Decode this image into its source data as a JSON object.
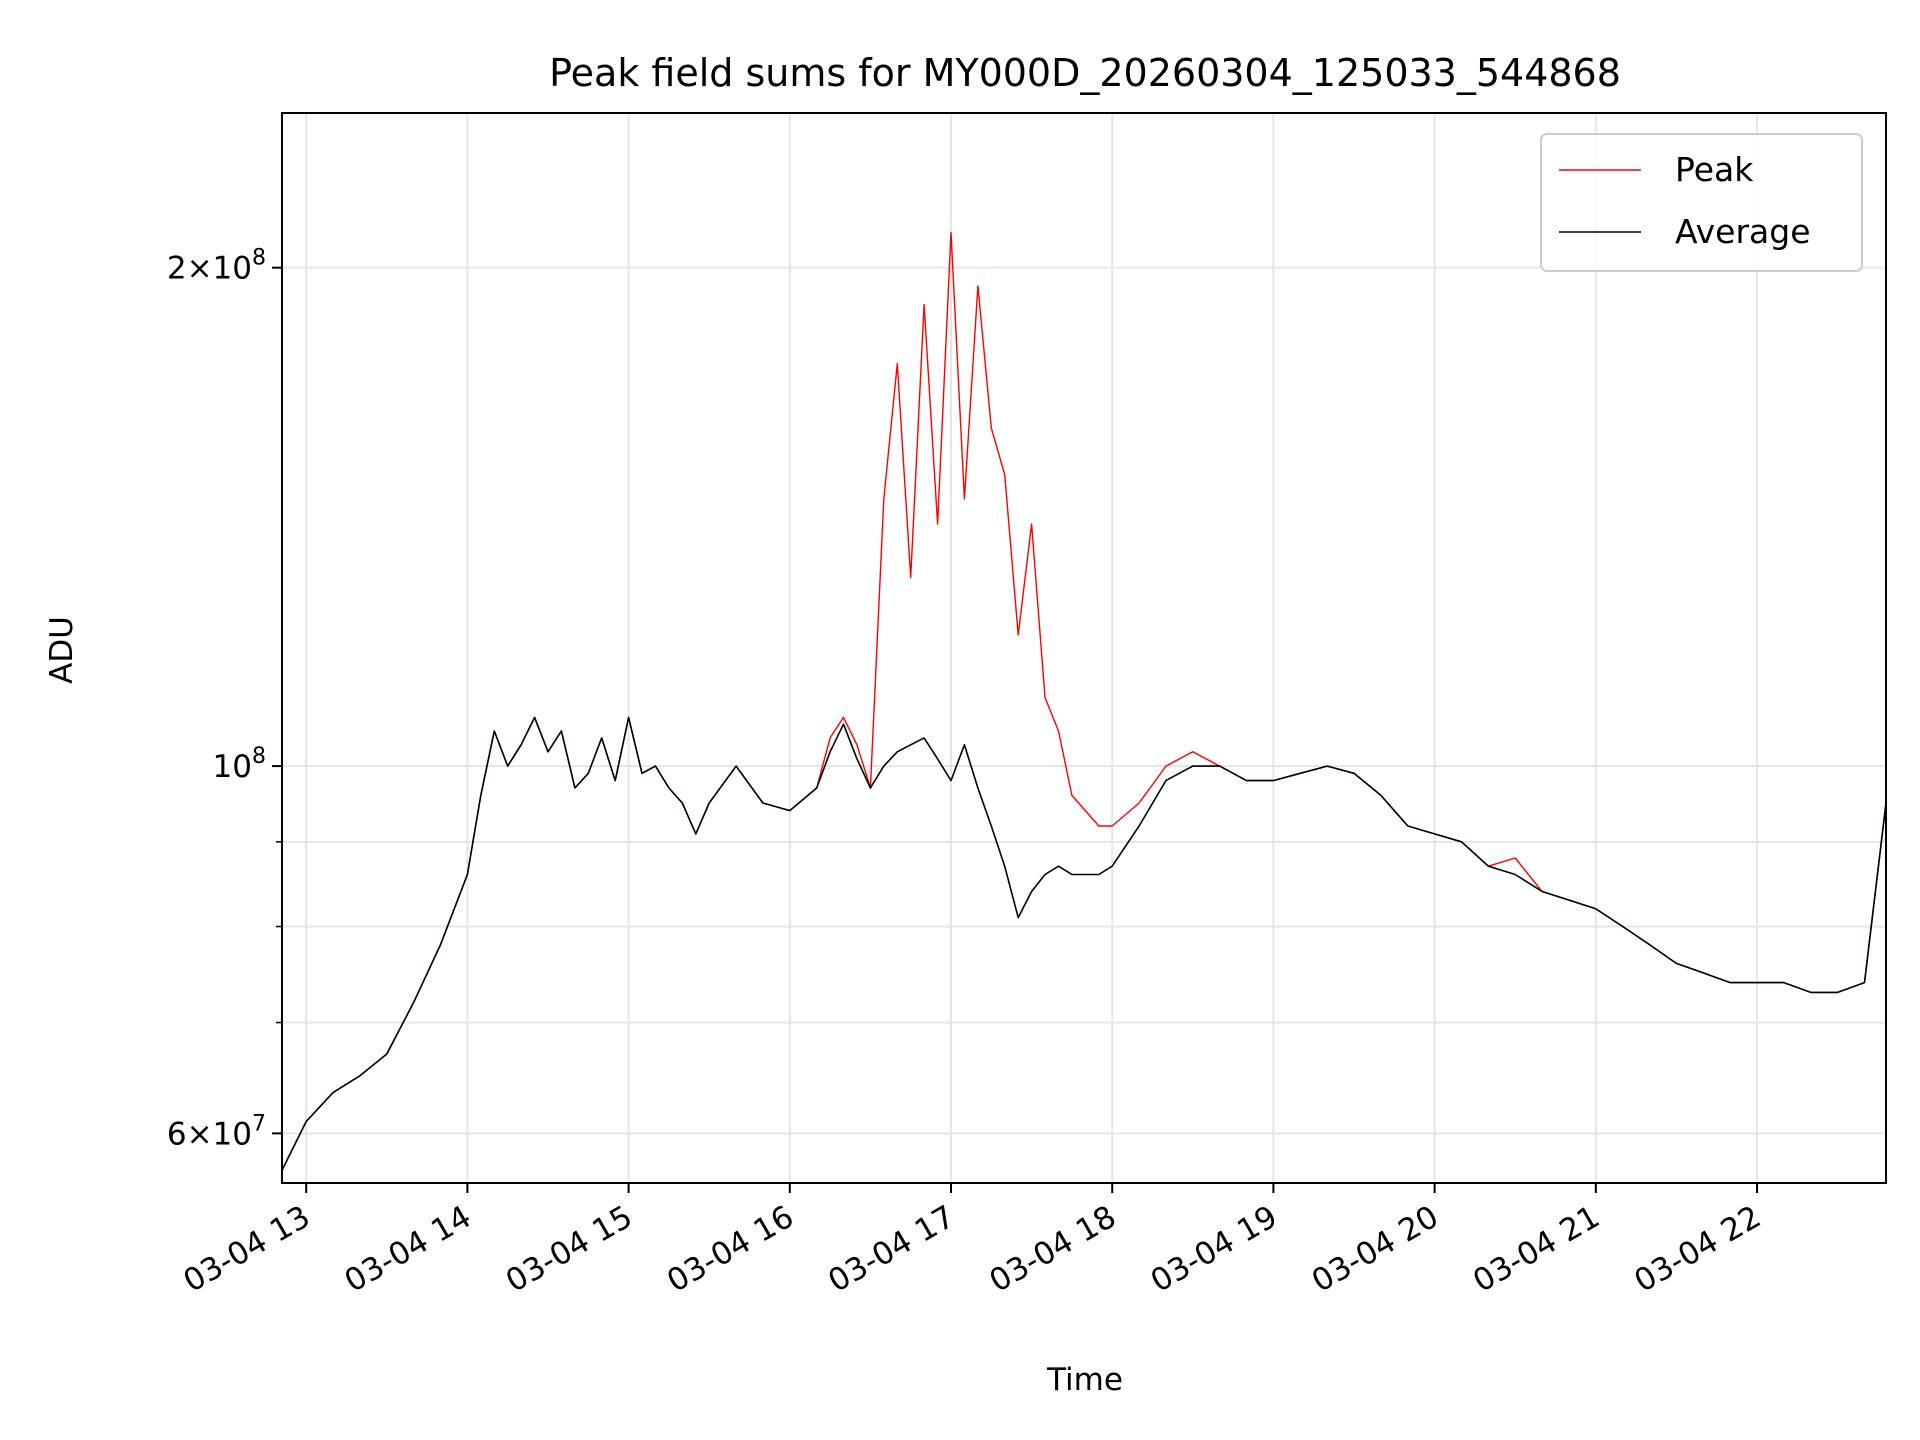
{
  "chart_data": {
    "type": "line",
    "title": "Peak field sums for MY000D_20260304_125033_544868",
    "xlabel": "Time",
    "ylabel": "ADU",
    "yscale": "log",
    "xlim": [
      "2026-03-04 12:51",
      "2026-03-04 22:48"
    ],
    "ylim": [
      56000000,
      248000000
    ],
    "grid": true,
    "legend_position": "top-right",
    "x_ticks": [
      {
        "value": "2026-03-04 13:00",
        "label": "03-04 13"
      },
      {
        "value": "2026-03-04 14:00",
        "label": "03-04 14"
      },
      {
        "value": "2026-03-04 15:00",
        "label": "03-04 15"
      },
      {
        "value": "2026-03-04 16:00",
        "label": "03-04 16"
      },
      {
        "value": "2026-03-04 17:00",
        "label": "03-04 17"
      },
      {
        "value": "2026-03-04 18:00",
        "label": "03-04 18"
      },
      {
        "value": "2026-03-04 19:00",
        "label": "03-04 19"
      },
      {
        "value": "2026-03-04 20:00",
        "label": "03-04 20"
      },
      {
        "value": "2026-03-04 21:00",
        "label": "03-04 21"
      },
      {
        "value": "2026-03-04 22:00",
        "label": "03-04 22"
      }
    ],
    "y_major_ticks": [
      {
        "value": 60000000,
        "mantissa": "6",
        "exponent": "7"
      },
      {
        "value": 100000000,
        "mantissa": "",
        "exponent": "8"
      },
      {
        "value": 200000000,
        "mantissa": "2",
        "exponent": "8"
      }
    ],
    "y_minor_ticks": [
      70000000,
      80000000,
      90000000
    ],
    "series": [
      {
        "name": "Peak",
        "color": "#ff0000",
        "x": [
          "2026-03-04 12:51",
          "2026-03-04 13:00",
          "2026-03-04 13:10",
          "2026-03-04 13:20",
          "2026-03-04 13:30",
          "2026-03-04 13:40",
          "2026-03-04 13:50",
          "2026-03-04 14:00",
          "2026-03-04 14:05",
          "2026-03-04 14:10",
          "2026-03-04 14:15",
          "2026-03-04 14:20",
          "2026-03-04 14:25",
          "2026-03-04 14:30",
          "2026-03-04 14:35",
          "2026-03-04 14:40",
          "2026-03-04 14:45",
          "2026-03-04 14:50",
          "2026-03-04 14:55",
          "2026-03-04 15:00",
          "2026-03-04 15:05",
          "2026-03-04 15:10",
          "2026-03-04 15:15",
          "2026-03-04 15:20",
          "2026-03-04 15:25",
          "2026-03-04 15:30",
          "2026-03-04 15:40",
          "2026-03-04 15:50",
          "2026-03-04 16:00",
          "2026-03-04 16:10",
          "2026-03-04 16:15",
          "2026-03-04 16:20",
          "2026-03-04 16:25",
          "2026-03-04 16:30",
          "2026-03-04 16:35",
          "2026-03-04 16:40",
          "2026-03-04 16:45",
          "2026-03-04 16:50",
          "2026-03-04 16:55",
          "2026-03-04 17:00",
          "2026-03-04 17:05",
          "2026-03-04 17:10",
          "2026-03-04 17:15",
          "2026-03-04 17:20",
          "2026-03-04 17:25",
          "2026-03-04 17:30",
          "2026-03-04 17:35",
          "2026-03-04 17:40",
          "2026-03-04 17:45",
          "2026-03-04 17:50",
          "2026-03-04 17:55",
          "2026-03-04 18:00",
          "2026-03-04 18:10",
          "2026-03-04 18:20",
          "2026-03-04 18:30",
          "2026-03-04 18:40",
          "2026-03-04 18:50",
          "2026-03-04 19:00",
          "2026-03-04 19:10",
          "2026-03-04 19:20",
          "2026-03-04 19:30",
          "2026-03-04 19:40",
          "2026-03-04 19:50",
          "2026-03-04 20:00",
          "2026-03-04 20:10",
          "2026-03-04 20:20",
          "2026-03-04 20:30",
          "2026-03-04 20:40",
          "2026-03-04 20:50",
          "2026-03-04 21:00",
          "2026-03-04 21:10",
          "2026-03-04 21:20",
          "2026-03-04 21:30",
          "2026-03-04 21:40",
          "2026-03-04 21:50",
          "2026-03-04 22:00",
          "2026-03-04 22:10",
          "2026-03-04 22:20",
          "2026-03-04 22:30",
          "2026-03-04 22:40",
          "2026-03-04 22:48"
        ],
        "values": [
          57000000,
          61000000,
          63500000,
          65000000,
          67000000,
          72000000,
          78000000,
          86000000,
          96000000,
          105000000,
          100000000,
          103000000,
          107000000,
          102000000,
          105000000,
          97000000,
          99000000,
          104000000,
          98000000,
          107000000,
          99000000,
          100000000,
          97000000,
          95000000,
          91000000,
          95000000,
          100000000,
          95000000,
          94000000,
          97000000,
          104000000,
          107000000,
          103000000,
          97000000,
          145000000,
          175000000,
          130000000,
          190000000,
          140000000,
          210000000,
          145000000,
          195000000,
          160000000,
          150000000,
          120000000,
          140000000,
          110000000,
          105000000,
          96000000,
          94000000,
          92000000,
          92000000,
          95000000,
          100000000,
          102000000,
          100000000,
          98000000,
          98000000,
          99000000,
          100000000,
          99000000,
          96000000,
          92000000,
          91000000,
          90000000,
          87000000,
          88000000,
          84000000,
          83000000,
          82000000,
          80000000,
          78000000,
          76000000,
          75000000,
          74000000,
          74000000,
          74000000,
          73000000,
          73000000,
          74000000,
          95000000
        ]
      },
      {
        "name": "Average",
        "color": "#000000",
        "x": [
          "2026-03-04 12:51",
          "2026-03-04 13:00",
          "2026-03-04 13:10",
          "2026-03-04 13:20",
          "2026-03-04 13:30",
          "2026-03-04 13:40",
          "2026-03-04 13:50",
          "2026-03-04 14:00",
          "2026-03-04 14:05",
          "2026-03-04 14:10",
          "2026-03-04 14:15",
          "2026-03-04 14:20",
          "2026-03-04 14:25",
          "2026-03-04 14:30",
          "2026-03-04 14:35",
          "2026-03-04 14:40",
          "2026-03-04 14:45",
          "2026-03-04 14:50",
          "2026-03-04 14:55",
          "2026-03-04 15:00",
          "2026-03-04 15:05",
          "2026-03-04 15:10",
          "2026-03-04 15:15",
          "2026-03-04 15:20",
          "2026-03-04 15:25",
          "2026-03-04 15:30",
          "2026-03-04 15:40",
          "2026-03-04 15:50",
          "2026-03-04 16:00",
          "2026-03-04 16:10",
          "2026-03-04 16:15",
          "2026-03-04 16:20",
          "2026-03-04 16:25",
          "2026-03-04 16:30",
          "2026-03-04 16:35",
          "2026-03-04 16:40",
          "2026-03-04 16:45",
          "2026-03-04 16:50",
          "2026-03-04 16:55",
          "2026-03-04 17:00",
          "2026-03-04 17:05",
          "2026-03-04 17:10",
          "2026-03-04 17:15",
          "2026-03-04 17:20",
          "2026-03-04 17:25",
          "2026-03-04 17:30",
          "2026-03-04 17:35",
          "2026-03-04 17:40",
          "2026-03-04 17:45",
          "2026-03-04 17:50",
          "2026-03-04 17:55",
          "2026-03-04 18:00",
          "2026-03-04 18:10",
          "2026-03-04 18:20",
          "2026-03-04 18:30",
          "2026-03-04 18:40",
          "2026-03-04 18:50",
          "2026-03-04 19:00",
          "2026-03-04 19:10",
          "2026-03-04 19:20",
          "2026-03-04 19:30",
          "2026-03-04 19:40",
          "2026-03-04 19:50",
          "2026-03-04 20:00",
          "2026-03-04 20:10",
          "2026-03-04 20:20",
          "2026-03-04 20:30",
          "2026-03-04 20:40",
          "2026-03-04 20:50",
          "2026-03-04 21:00",
          "2026-03-04 21:10",
          "2026-03-04 21:20",
          "2026-03-04 21:30",
          "2026-03-04 21:40",
          "2026-03-04 21:50",
          "2026-03-04 22:00",
          "2026-03-04 22:10",
          "2026-03-04 22:20",
          "2026-03-04 22:30",
          "2026-03-04 22:40",
          "2026-03-04 22:48"
        ],
        "values": [
          57000000,
          61000000,
          63500000,
          65000000,
          67000000,
          72000000,
          78000000,
          86000000,
          96000000,
          105000000,
          100000000,
          103000000,
          107000000,
          102000000,
          105000000,
          97000000,
          99000000,
          104000000,
          98000000,
          107000000,
          99000000,
          100000000,
          97000000,
          95000000,
          91000000,
          95000000,
          100000000,
          95000000,
          94000000,
          97000000,
          102000000,
          106000000,
          101000000,
          97000000,
          100000000,
          102000000,
          103000000,
          104000000,
          101000000,
          98000000,
          103000000,
          97000000,
          92000000,
          87000000,
          81000000,
          84000000,
          86000000,
          87000000,
          86000000,
          86000000,
          86000000,
          87000000,
          92000000,
          98000000,
          100000000,
          100000000,
          98000000,
          98000000,
          99000000,
          100000000,
          99000000,
          96000000,
          92000000,
          91000000,
          90000000,
          87000000,
          86000000,
          84000000,
          83000000,
          82000000,
          80000000,
          78000000,
          76000000,
          75000000,
          74000000,
          74000000,
          74000000,
          73000000,
          73000000,
          74000000,
          95000000
        ]
      }
    ]
  }
}
